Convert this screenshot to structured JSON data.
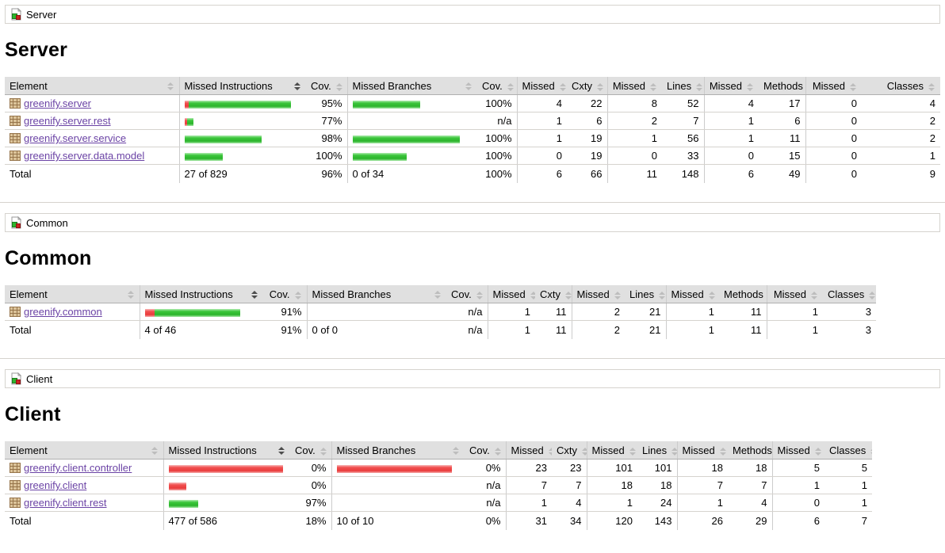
{
  "colors": {
    "green_bar": "#2bb42b",
    "red_bar": "#ea3b3b",
    "link": "#6b43a5",
    "header_bg": "#e0e0e0",
    "border": "#d6d3ce"
  },
  "icons": {
    "breadcrumb": "report-session-icon",
    "element": "package-grid-icon",
    "sort": "sort-arrows-icon"
  },
  "sections": [
    {
      "breadcrumb": "Server",
      "title": "Server",
      "sorted_column_index": 1,
      "sort_direction": "desc",
      "columns": [
        "Element",
        "Missed Instructions",
        "Cov.",
        "Missed Branches",
        "Cov.",
        "Missed",
        "Cxty",
        "Missed",
        "Lines",
        "Missed",
        "Methods",
        "Missed",
        "Classes"
      ],
      "rows": [
        {
          "element": "greenify.server",
          "ins_red": 5,
          "ins_green": 129,
          "ins_cov": "95%",
          "br_red": 0,
          "br_green": 85,
          "br_cov": "100%",
          "cells": [
            "4",
            "22",
            "8",
            "52",
            "4",
            "17",
            "0",
            "4"
          ]
        },
        {
          "element": "greenify.server.rest",
          "ins_red": 3,
          "ins_green": 8,
          "ins_cov": "77%",
          "br_red": 0,
          "br_green": 0,
          "br_cov": "n/a",
          "cells": [
            "1",
            "6",
            "2",
            "7",
            "1",
            "6",
            "0",
            "2"
          ]
        },
        {
          "element": "greenify.server.service",
          "ins_red": 0,
          "ins_green": 97,
          "ins_cov": "98%",
          "br_red": 0,
          "br_green": 135,
          "br_cov": "100%",
          "cells": [
            "1",
            "19",
            "1",
            "56",
            "1",
            "11",
            "0",
            "2"
          ]
        },
        {
          "element": "greenify.server.data.model",
          "ins_red": 0,
          "ins_green": 48,
          "ins_cov": "100%",
          "br_red": 0,
          "br_green": 68,
          "br_cov": "100%",
          "cells": [
            "0",
            "19",
            "0",
            "33",
            "0",
            "15",
            "0",
            "1"
          ]
        }
      ],
      "total": {
        "label": "Total",
        "ins": "27 of 829",
        "ins_cov": "96%",
        "br": "0 of 34",
        "br_cov": "100%",
        "cells": [
          "6",
          "66",
          "11",
          "148",
          "6",
          "49",
          "0",
          "9"
        ]
      }
    },
    {
      "breadcrumb": "Common",
      "title": "Common",
      "sorted_column_index": 1,
      "sort_direction": "desc",
      "columns": [
        "Element",
        "Missed Instructions",
        "Cov.",
        "Missed Branches",
        "Cov.",
        "Missed",
        "Cxty",
        "Missed",
        "Lines",
        "Missed",
        "Methods",
        "Missed",
        "Classes"
      ],
      "rows": [
        {
          "element": "greenify.common",
          "ins_red": 12,
          "ins_green": 108,
          "ins_cov": "91%",
          "br_red": 0,
          "br_green": 0,
          "br_cov": "n/a",
          "cells": [
            "1",
            "11",
            "2",
            "21",
            "1",
            "11",
            "1",
            "3"
          ]
        }
      ],
      "total": {
        "label": "Total",
        "ins": "4 of 46",
        "ins_cov": "91%",
        "br": "0 of 0",
        "br_cov": "n/a",
        "cells": [
          "1",
          "11",
          "2",
          "21",
          "1",
          "11",
          "1",
          "3"
        ]
      }
    },
    {
      "breadcrumb": "Client",
      "title": "Client",
      "sorted_column_index": 1,
      "sort_direction": "desc",
      "columns": [
        "Element",
        "Missed Instructions",
        "Cov.",
        "Missed Branches",
        "Cov.",
        "Missed",
        "Cxty",
        "Missed",
        "Lines",
        "Missed",
        "Methods",
        "Missed",
        "Classes"
      ],
      "rows": [
        {
          "element": "greenify.client.controller",
          "ins_red": 144,
          "ins_green": 0,
          "ins_cov": "0%",
          "br_red": 145,
          "br_green": 0,
          "br_cov": "0%",
          "cells": [
            "23",
            "23",
            "101",
            "101",
            "18",
            "18",
            "5",
            "5"
          ]
        },
        {
          "element": "greenify.client",
          "ins_red": 22,
          "ins_green": 0,
          "ins_cov": "0%",
          "br_red": 0,
          "br_green": 0,
          "br_cov": "n/a",
          "cells": [
            "7",
            "7",
            "18",
            "18",
            "7",
            "7",
            "1",
            "1"
          ]
        },
        {
          "element": "greenify.client.rest",
          "ins_red": 0,
          "ins_green": 37,
          "ins_cov": "97%",
          "br_red": 0,
          "br_green": 0,
          "br_cov": "n/a",
          "cells": [
            "1",
            "4",
            "1",
            "24",
            "1",
            "4",
            "0",
            "1"
          ]
        }
      ],
      "total": {
        "label": "Total",
        "ins": "477 of 586",
        "ins_cov": "18%",
        "br": "10 of 10",
        "br_cov": "0%",
        "cells": [
          "31",
          "34",
          "120",
          "143",
          "26",
          "29",
          "6",
          "7"
        ]
      }
    }
  ]
}
